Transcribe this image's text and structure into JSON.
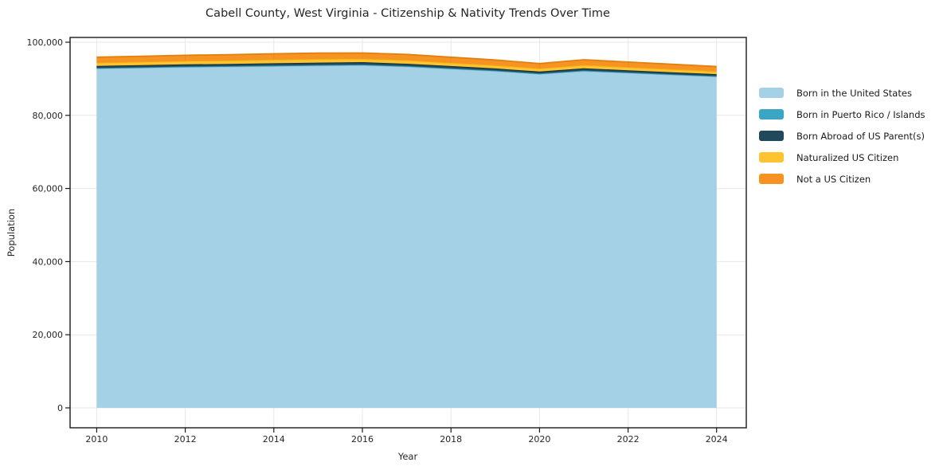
{
  "page": {
    "title": "Cabell County, West Virginia - Citizenship & Nativity Trends Over Time"
  },
  "chart_data": {
    "type": "area",
    "stacked": true,
    "title": "Cabell County, West Virginia - Citizenship & Nativity Trends Over Time",
    "xlabel": "Year",
    "ylabel": "Population",
    "x": [
      2010,
      2011,
      2012,
      2013,
      2014,
      2015,
      2016,
      2017,
      2018,
      2019,
      2020,
      2021,
      2022,
      2023,
      2024
    ],
    "series": [
      {
        "id": "born-us",
        "name": "Born in the United States",
        "color": "#a5d1e6",
        "edge": "#8bc0da",
        "values": [
          92800,
          93000,
          93200,
          93300,
          93450,
          93600,
          93700,
          93300,
          92700,
          92100,
          91300,
          92100,
          91600,
          91100,
          90600
        ]
      },
      {
        "id": "born-pr-islands",
        "name": "Born in Puerto Rico / Islands",
        "color": "#3ba6c4",
        "edge": "#2b8fa9",
        "values": [
          140,
          145,
          150,
          155,
          165,
          175,
          185,
          175,
          165,
          155,
          145,
          160,
          150,
          145,
          140
        ]
      },
      {
        "id": "born-abroad",
        "name": "Born Abroad of US Parent(s)",
        "color": "#21495c",
        "edge": "#142f3d",
        "values": [
          580,
          590,
          600,
          620,
          640,
          650,
          660,
          640,
          610,
          580,
          540,
          590,
          570,
          550,
          530
        ]
      },
      {
        "id": "naturalized",
        "name": "Naturalized US Citizen",
        "color": "#fdc330",
        "edge": "#efad10",
        "values": [
          900,
          920,
          940,
          960,
          980,
          990,
          960,
          970,
          930,
          890,
          850,
          910,
          880,
          850,
          820
        ]
      },
      {
        "id": "not-citizen",
        "name": "Not a US Citizen",
        "color": "#f79322",
        "edge": "#e2800e",
        "values": [
          1480,
          1510,
          1540,
          1570,
          1600,
          1620,
          1560,
          1580,
          1500,
          1420,
          1330,
          1450,
          1380,
          1310,
          1260
        ]
      }
    ],
    "xticks": [
      2010,
      2012,
      2014,
      2016,
      2018,
      2020,
      2022,
      2024
    ],
    "xtick_labels": [
      "2010",
      "2012",
      "2014",
      "2016",
      "2018",
      "2020",
      "2022",
      "2024"
    ],
    "yticks": [
      0,
      20000,
      40000,
      60000,
      80000,
      100000
    ],
    "ytick_labels": [
      "0",
      "20,000",
      "40,000",
      "60,000",
      "80,000",
      "100,000"
    ],
    "xlim": [
      2009.4,
      2024.67
    ],
    "ylim": [
      -5435,
      101304
    ],
    "grid": true,
    "grid_color": "#e7e7e7",
    "spine_color": "#1a1a1a",
    "legend_position": "right"
  }
}
